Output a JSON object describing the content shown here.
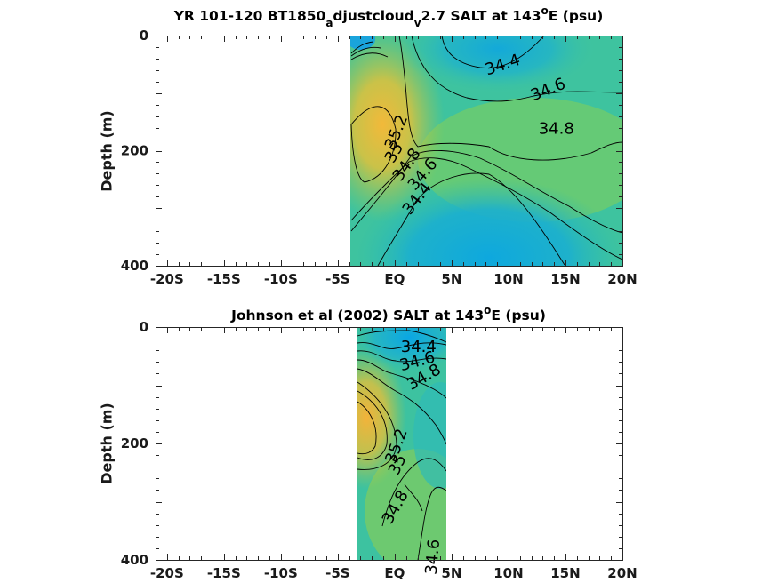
{
  "chart_data": [
    {
      "type": "contour",
      "title_parts": [
        "YR 101-120 BT1850",
        "a",
        "djustcloud",
        "v",
        "2.7 SALT at 143",
        "o",
        "E (psu)"
      ],
      "ylabel": "Depth (m)",
      "xlim": [
        -21,
        20
      ],
      "ylim": [
        0,
        400
      ],
      "y_reversed": true,
      "data_extent_lat": [
        -4.2,
        20
      ],
      "xticks": [
        {
          "v": -20,
          "label": "-20S"
        },
        {
          "v": -15,
          "label": "-15S"
        },
        {
          "v": -10,
          "label": "-10S"
        },
        {
          "v": -5,
          "label": "-5S"
        },
        {
          "v": 0,
          "label": "EQ"
        },
        {
          "v": 5,
          "label": "5N"
        },
        {
          "v": 10,
          "label": "10N"
        },
        {
          "v": 15,
          "label": "15N"
        },
        {
          "v": 20,
          "label": "20N"
        }
      ],
      "yticks": [
        {
          "v": 0,
          "label": "0"
        },
        {
          "v": 200,
          "label": "200"
        },
        {
          "v": 400,
          "label": "400"
        }
      ],
      "contour_labels": [
        {
          "text": "34.4",
          "lat": 9.5,
          "depth": 52,
          "angle": -18
        },
        {
          "text": "34.6",
          "lat": 13.5,
          "depth": 95,
          "angle": -22
        },
        {
          "text": "34.8",
          "lat": 14.2,
          "depth": 163,
          "angle": 0
        },
        {
          "text": "35.2",
          "lat": 0.2,
          "depth": 168,
          "angle": -68
        },
        {
          "text": "35",
          "lat": 0.0,
          "depth": 204,
          "angle": -60
        },
        {
          "text": "34.8",
          "lat": 1.1,
          "depth": 225,
          "angle": -55
        },
        {
          "text": "34.6",
          "lat": 2.5,
          "depth": 242,
          "angle": -50
        },
        {
          "text": "34.4",
          "lat": 2.0,
          "depth": 284,
          "angle": -52
        }
      ]
    },
    {
      "type": "contour",
      "title_parts": [
        "Johnson et al (2002) SALT at 143",
        "o",
        "E (psu)"
      ],
      "ylabel": "Depth (m)",
      "xlim": [
        -21,
        20
      ],
      "ylim": [
        0,
        400
      ],
      "y_reversed": true,
      "data_extent_lat": [
        -3.8,
        5
      ],
      "xticks": [
        {
          "v": -20,
          "label": "-20S"
        },
        {
          "v": -15,
          "label": "-15S"
        },
        {
          "v": -10,
          "label": "-10S"
        },
        {
          "v": -5,
          "label": "-5S"
        },
        {
          "v": 0,
          "label": "EQ"
        },
        {
          "v": 5,
          "label": "5N"
        },
        {
          "v": 10,
          "label": "10N"
        },
        {
          "v": 15,
          "label": "15N"
        },
        {
          "v": 20,
          "label": "20N"
        }
      ],
      "yticks": [
        {
          "v": 0,
          "label": "0"
        },
        {
          "v": 200,
          "label": "200"
        },
        {
          "v": 400,
          "label": "400"
        }
      ],
      "contour_labels": [
        {
          "text": "34.4",
          "lat": 2.1,
          "depth": 35,
          "angle": 0
        },
        {
          "text": "34.6",
          "lat": 2.0,
          "depth": 60,
          "angle": -15
        },
        {
          "text": "34.8",
          "lat": 2.6,
          "depth": 87,
          "angle": -30
        },
        {
          "text": "35.2",
          "lat": 0.2,
          "depth": 205,
          "angle": -70
        },
        {
          "text": "35",
          "lat": 0.3,
          "depth": 237,
          "angle": -65
        },
        {
          "text": "34.8",
          "lat": 0.1,
          "depth": 310,
          "angle": -60
        },
        {
          "text": "34.6",
          "lat": 3.4,
          "depth": 395,
          "angle": -85
        }
      ]
    }
  ]
}
